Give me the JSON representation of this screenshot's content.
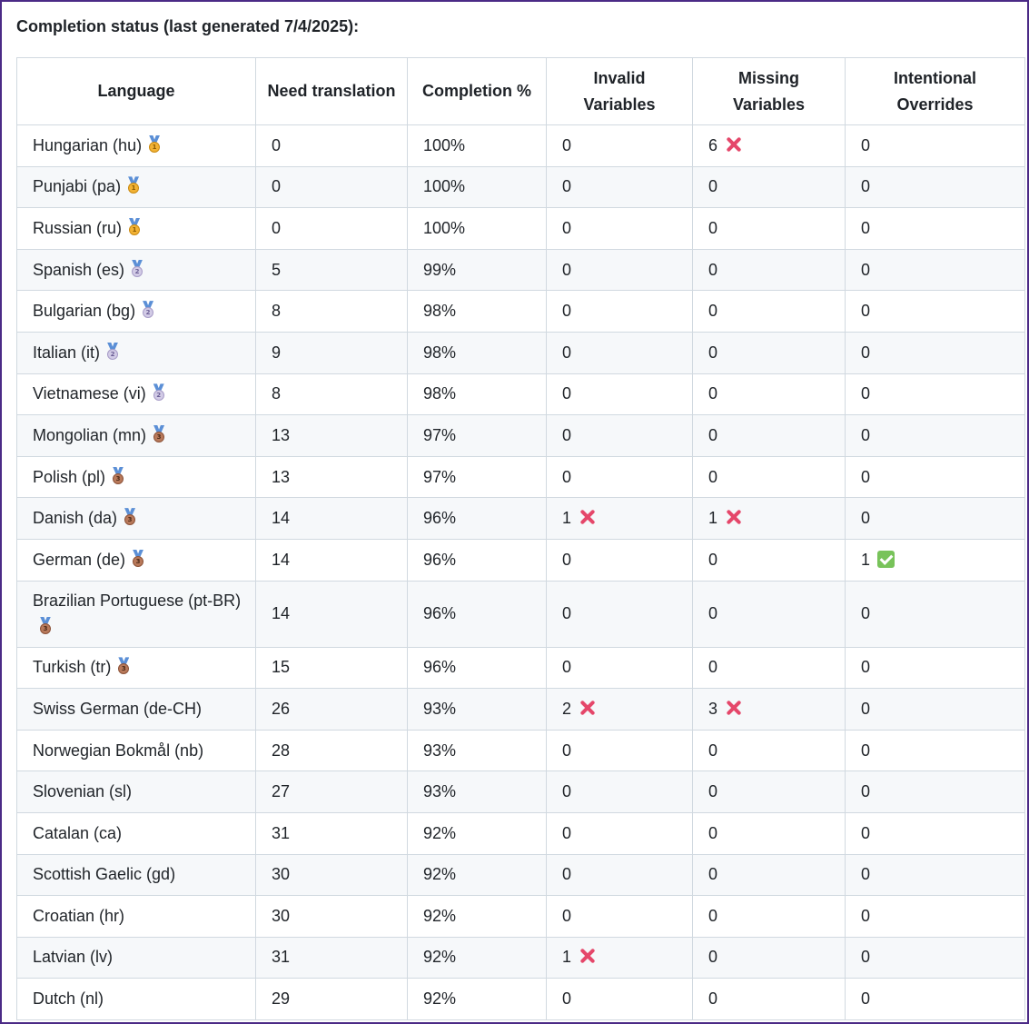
{
  "heading": "Completion status (last generated 7/4/2025):",
  "columns": [
    "Language",
    "Need translation",
    "Completion %",
    "Invalid Variables",
    "Missing Variables",
    "Intentional Overrides"
  ],
  "rows": [
    {
      "language": "Hungarian (hu)",
      "medal": "gold",
      "need": "0",
      "completion": "100%",
      "invalid": "0",
      "invalid_status": "",
      "missing": "6",
      "missing_status": "x-mark",
      "overrides": "0",
      "overrides_status": ""
    },
    {
      "language": "Punjabi (pa)",
      "medal": "gold",
      "need": "0",
      "completion": "100%",
      "invalid": "0",
      "invalid_status": "",
      "missing": "0",
      "missing_status": "",
      "overrides": "0",
      "overrides_status": ""
    },
    {
      "language": "Russian (ru)",
      "medal": "gold",
      "need": "0",
      "completion": "100%",
      "invalid": "0",
      "invalid_status": "",
      "missing": "0",
      "missing_status": "",
      "overrides": "0",
      "overrides_status": ""
    },
    {
      "language": "Spanish (es)",
      "medal": "silver",
      "need": "5",
      "completion": "99%",
      "invalid": "0",
      "invalid_status": "",
      "missing": "0",
      "missing_status": "",
      "overrides": "0",
      "overrides_status": ""
    },
    {
      "language": "Bulgarian (bg)",
      "medal": "silver",
      "need": "8",
      "completion": "98%",
      "invalid": "0",
      "invalid_status": "",
      "missing": "0",
      "missing_status": "",
      "overrides": "0",
      "overrides_status": ""
    },
    {
      "language": "Italian (it)",
      "medal": "silver",
      "need": "9",
      "completion": "98%",
      "invalid": "0",
      "invalid_status": "",
      "missing": "0",
      "missing_status": "",
      "overrides": "0",
      "overrides_status": ""
    },
    {
      "language": "Vietnamese (vi)",
      "medal": "silver",
      "need": "8",
      "completion": "98%",
      "invalid": "0",
      "invalid_status": "",
      "missing": "0",
      "missing_status": "",
      "overrides": "0",
      "overrides_status": ""
    },
    {
      "language": "Mongolian (mn)",
      "medal": "bronze",
      "need": "13",
      "completion": "97%",
      "invalid": "0",
      "invalid_status": "",
      "missing": "0",
      "missing_status": "",
      "overrides": "0",
      "overrides_status": ""
    },
    {
      "language": "Polish (pl)",
      "medal": "bronze",
      "need": "13",
      "completion": "97%",
      "invalid": "0",
      "invalid_status": "",
      "missing": "0",
      "missing_status": "",
      "overrides": "0",
      "overrides_status": ""
    },
    {
      "language": "Danish (da)",
      "medal": "bronze",
      "need": "14",
      "completion": "96%",
      "invalid": "1",
      "invalid_status": "x-mark",
      "missing": "1",
      "missing_status": "x-mark",
      "overrides": "0",
      "overrides_status": ""
    },
    {
      "language": "German (de)",
      "medal": "bronze",
      "need": "14",
      "completion": "96%",
      "invalid": "0",
      "invalid_status": "",
      "missing": "0",
      "missing_status": "",
      "overrides": "1",
      "overrides_status": "check-mark"
    },
    {
      "language": "Brazilian Portuguese (pt-BR)",
      "medal": "bronze",
      "need": "14",
      "completion": "96%",
      "invalid": "0",
      "invalid_status": "",
      "missing": "0",
      "missing_status": "",
      "overrides": "0",
      "overrides_status": ""
    },
    {
      "language": "Turkish (tr)",
      "medal": "bronze",
      "need": "15",
      "completion": "96%",
      "invalid": "0",
      "invalid_status": "",
      "missing": "0",
      "missing_status": "",
      "overrides": "0",
      "overrides_status": ""
    },
    {
      "language": "Swiss German (de-CH)",
      "medal": "",
      "need": "26",
      "completion": "93%",
      "invalid": "2",
      "invalid_status": "x-mark",
      "missing": "3",
      "missing_status": "x-mark",
      "overrides": "0",
      "overrides_status": ""
    },
    {
      "language": "Norwegian Bokmål (nb)",
      "medal": "",
      "need": "28",
      "completion": "93%",
      "invalid": "0",
      "invalid_status": "",
      "missing": "0",
      "missing_status": "",
      "overrides": "0",
      "overrides_status": ""
    },
    {
      "language": "Slovenian (sl)",
      "medal": "",
      "need": "27",
      "completion": "93%",
      "invalid": "0",
      "invalid_status": "",
      "missing": "0",
      "missing_status": "",
      "overrides": "0",
      "overrides_status": ""
    },
    {
      "language": "Catalan (ca)",
      "medal": "",
      "need": "31",
      "completion": "92%",
      "invalid": "0",
      "invalid_status": "",
      "missing": "0",
      "missing_status": "",
      "overrides": "0",
      "overrides_status": ""
    },
    {
      "language": "Scottish Gaelic (gd)",
      "medal": "",
      "need": "30",
      "completion": "92%",
      "invalid": "0",
      "invalid_status": "",
      "missing": "0",
      "missing_status": "",
      "overrides": "0",
      "overrides_status": ""
    },
    {
      "language": "Croatian (hr)",
      "medal": "",
      "need": "30",
      "completion": "92%",
      "invalid": "0",
      "invalid_status": "",
      "missing": "0",
      "missing_status": "",
      "overrides": "0",
      "overrides_status": ""
    },
    {
      "language": "Latvian (lv)",
      "medal": "",
      "need": "31",
      "completion": "92%",
      "invalid": "1",
      "invalid_status": "x-mark",
      "missing": "0",
      "missing_status": "",
      "overrides": "0",
      "overrides_status": ""
    },
    {
      "language": "Dutch (nl)",
      "medal": "",
      "need": "29",
      "completion": "92%",
      "invalid": "0",
      "invalid_status": "",
      "missing": "0",
      "missing_status": "",
      "overrides": "0",
      "overrides_status": ""
    }
  ],
  "colors": {
    "frame_border": "#4b2a86",
    "grid_border": "#d1d9e0",
    "row_alt_bg": "#f6f8fa",
    "x_mark": "#e5476a",
    "check_mark": "#78c35a"
  }
}
